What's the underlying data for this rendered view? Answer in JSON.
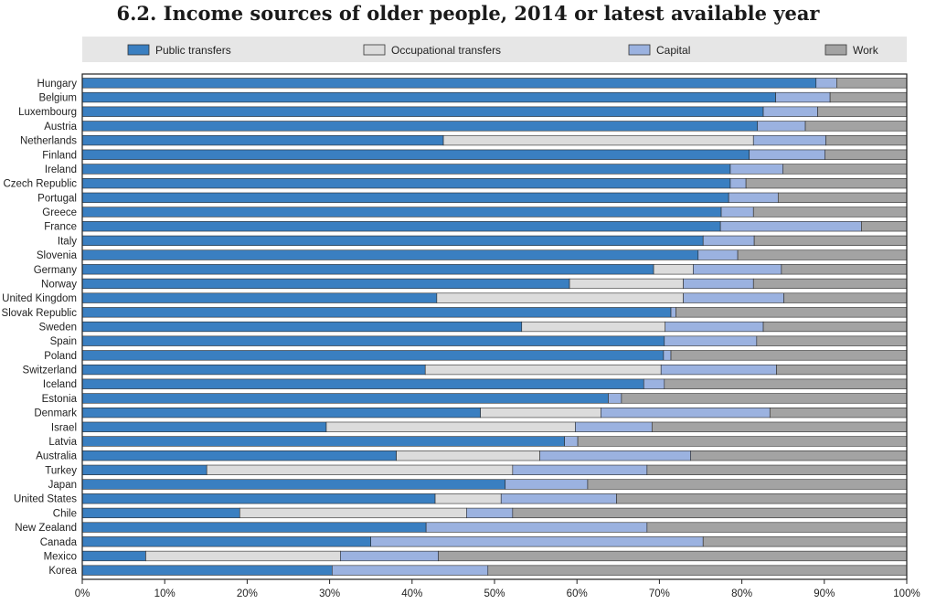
{
  "chart_data": {
    "type": "bar",
    "orientation": "horizontal",
    "stacked": true,
    "title": "6.2. Income sources of older people, 2014 or latest available year",
    "xlabel": "",
    "ylabel": "",
    "xlim": [
      0,
      100
    ],
    "x_ticks": [
      "0%",
      "10%",
      "20%",
      "30%",
      "40%",
      "50%",
      "60%",
      "70%",
      "80%",
      "90%",
      "100%"
    ],
    "legend_position": "top",
    "grid": false,
    "categories": [
      "Hungary",
      "Belgium",
      "Luxembourg",
      "Austria",
      "Netherlands",
      "Finland",
      "Ireland",
      "Czech Republic",
      "Portugal",
      "Greece",
      "France",
      "Italy",
      "Slovenia",
      "Germany",
      "Norway",
      "United Kingdom",
      "Slovak Republic",
      "Sweden",
      "Spain",
      "Poland",
      "Switzerland",
      "Iceland",
      "Estonia",
      "Denmark",
      "Israel",
      "Latvia",
      "Australia",
      "Turkey",
      "Japan",
      "United States",
      "Chile",
      "New Zealand",
      "Canada",
      "Mexico",
      "Korea"
    ],
    "series": [
      {
        "name": "Public transfers",
        "color": "#3a7fc1",
        "values": [
          89,
          84.1,
          82.6,
          81.9,
          43.8,
          80.9,
          78.6,
          78.6,
          78.4,
          77.5,
          77.4,
          75.3,
          74.7,
          69.3,
          59.1,
          43.0,
          71.4,
          53.3,
          70.6,
          70.5,
          41.6,
          68.1,
          63.8,
          48.3,
          29.6,
          58.5,
          38.1,
          15.1,
          51.3,
          42.8,
          19.1,
          41.7,
          35.0,
          7.7,
          30.3
        ]
      },
      {
        "name": "Occupational transfers",
        "color": "#dcdcdc",
        "values": [
          0,
          0,
          0,
          0,
          37.6,
          0,
          0,
          0,
          0,
          0,
          0,
          0,
          0,
          4.8,
          13.8,
          29.9,
          0,
          17.4,
          0,
          0,
          28.6,
          0,
          0,
          14.6,
          30.2,
          0,
          17.4,
          37.1,
          0,
          8.0,
          27.5,
          0,
          0,
          23.6,
          0
        ]
      },
      {
        "name": "Capital",
        "color": "#9bb2e0",
        "values": [
          2.5,
          6.6,
          6.6,
          5.8,
          8.8,
          9.2,
          6.4,
          1.9,
          6.0,
          3.9,
          17.1,
          6.2,
          4.8,
          10.7,
          8.5,
          12.2,
          0.6,
          11.9,
          11.2,
          0.9,
          14.0,
          2.5,
          1.6,
          20.5,
          9.3,
          1.6,
          18.3,
          16.3,
          10.0,
          14.0,
          5.6,
          26.8,
          40.3,
          11.9,
          18.9
        ]
      },
      {
        "name": "Work",
        "color": "#a3a3a3",
        "values": [
          8.5,
          9.3,
          10.8,
          12.3,
          9.8,
          9.9,
          15.0,
          19.5,
          15.6,
          18.6,
          5.5,
          18.5,
          20.5,
          15.2,
          18.6,
          14.9,
          28.0,
          17.4,
          18.2,
          28.6,
          15.8,
          29.4,
          34.6,
          16.6,
          30.9,
          39.9,
          26.2,
          31.5,
          38.7,
          35.2,
          47.8,
          31.5,
          24.7,
          56.8,
          50.8
        ]
      }
    ]
  }
}
